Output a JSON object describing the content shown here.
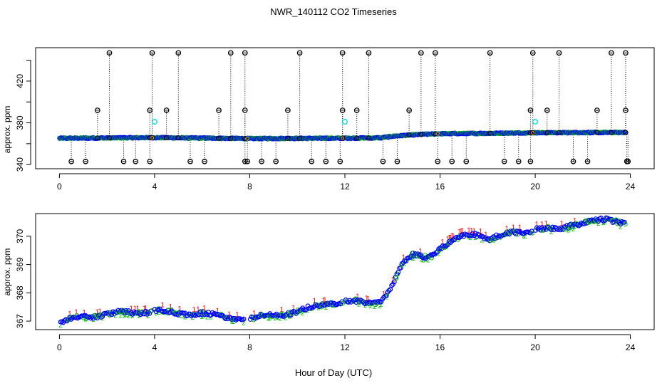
{
  "chart_data": {
    "title": "NWR_140112  CO2 Timeseries",
    "xlabel": "Hour of Day (UTC)",
    "panels": [
      {
        "type": "scatter",
        "ylabel": "approx. ppm",
        "xlim": [
          -1.0,
          25.0
        ],
        "ylim": [
          336,
          452
        ],
        "x_ticks": [
          0,
          4,
          8,
          12,
          16,
          20,
          24
        ],
        "y_ticks": [
          340,
          360,
          380,
          400,
          420,
          440
        ],
        "y_tick_labels": [
          340,
          380,
          420
        ],
        "baseline": [
          [
            0,
            365.2
          ],
          [
            4,
            365.8
          ],
          [
            8,
            364.9
          ],
          [
            12,
            365.3
          ],
          [
            13.5,
            365.6
          ],
          [
            14,
            367.2
          ],
          [
            15,
            368.7
          ],
          [
            16,
            369.6
          ],
          [
            18,
            369.9
          ],
          [
            20,
            370.5
          ],
          [
            24,
            370.8
          ]
        ],
        "upper_flags": [
          2.1,
          3.9,
          5.0,
          7.2,
          7.8,
          10.1,
          11.9,
          13.0,
          15.2,
          15.8,
          18.1,
          19.9,
          21.0,
          23.2,
          23.8
        ],
        "mid_flags": [
          1.6,
          3.8,
          4.5,
          6.7,
          7.8,
          9.6,
          11.9,
          12.5,
          14.7,
          19.8,
          20.5,
          22.6,
          23.8
        ],
        "lower_flags": [
          0.5,
          1.1,
          2.7,
          3.2,
          3.8,
          5.5,
          6.1,
          7.8,
          7.9,
          8.5,
          9.1,
          10.6,
          11.2,
          11.8,
          13.6,
          14.2,
          15.9,
          16.5,
          17.1,
          18.7,
          19.3,
          19.8,
          21.6,
          22.2,
          23.9,
          23.85
        ],
        "cyan_points": [
          [
            4.0,
            381
          ],
          [
            12.0,
            381
          ],
          [
            20.0,
            381
          ]
        ],
        "upper_value": 447,
        "mid_value": 392,
        "lower_value": 343
      },
      {
        "type": "scatter",
        "ylabel": "approx. ppm",
        "xlim": [
          -1.0,
          25.0
        ],
        "ylim": [
          366.7,
          370.8
        ],
        "x_ticks": [
          0,
          4,
          8,
          12,
          16,
          20,
          24
        ],
        "y_ticks": [
          367,
          368,
          369,
          370
        ],
        "y_tick_labels": [
          367,
          368,
          369,
          370
        ],
        "gaps": [
          [
            3.9,
            4.0
          ],
          [
            7.8,
            8.0
          ],
          [
            11.9,
            12.0
          ],
          [
            19.9,
            20.0
          ]
        ],
        "trend": [
          [
            0,
            366.95
          ],
          [
            0.5,
            367.05
          ],
          [
            1.0,
            367.15
          ],
          [
            2.0,
            367.25
          ],
          [
            3.0,
            367.3
          ],
          [
            3.8,
            367.35
          ],
          [
            4.0,
            367.4
          ],
          [
            5.0,
            367.25
          ],
          [
            6.0,
            367.3
          ],
          [
            7.0,
            367.1
          ],
          [
            7.7,
            367.1
          ],
          [
            8.0,
            367.1
          ],
          [
            9.0,
            367.2
          ],
          [
            10.0,
            367.35
          ],
          [
            11.0,
            367.55
          ],
          [
            11.8,
            367.7
          ],
          [
            12.0,
            367.75
          ],
          [
            13.0,
            367.6
          ],
          [
            13.5,
            367.7
          ],
          [
            14.0,
            368.3
          ],
          [
            14.4,
            369.0
          ],
          [
            14.8,
            369.3
          ],
          [
            15.5,
            369.3
          ],
          [
            15.8,
            369.4
          ],
          [
            16.0,
            369.6
          ],
          [
            17.0,
            370.0
          ],
          [
            17.6,
            370.1
          ],
          [
            18.0,
            369.9
          ],
          [
            18.5,
            370.0
          ],
          [
            19.0,
            370.1
          ],
          [
            19.8,
            370.2
          ],
          [
            20.0,
            370.3
          ],
          [
            21.0,
            370.2
          ],
          [
            21.5,
            370.4
          ],
          [
            22.0,
            370.5
          ],
          [
            23.0,
            370.55
          ],
          [
            23.7,
            370.5
          ]
        ]
      }
    ],
    "colors": {
      "blue": "#0000ff",
      "green": "#00c000",
      "red": "#ff0000",
      "cyan": "#00e0e0",
      "orange": "#ff8c00",
      "black": "#000000"
    }
  }
}
